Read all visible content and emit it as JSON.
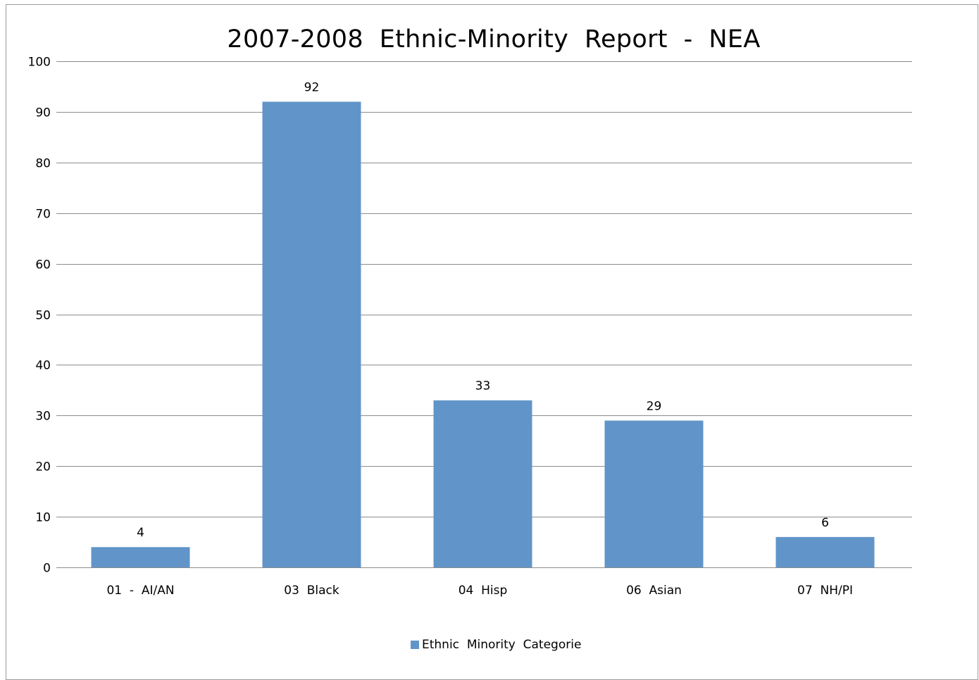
{
  "colors": {
    "bar": "#6195c9",
    "grid": "#8c8c8c",
    "axis": "#8c8c8c",
    "text": "#000000"
  },
  "chart_data": {
    "type": "bar",
    "title": "2007-2008  Ethnic-Minority  Report  -  NEA",
    "categories": [
      "01  -  AI/AN",
      "03  Black",
      "04  Hisp",
      "06  Asian",
      "07  NH/PI"
    ],
    "series": [
      {
        "name": "Ethnic  Minority  Categorie",
        "values": [
          4,
          92,
          33,
          29,
          6
        ]
      }
    ],
    "data_labels": [
      "4",
      "92",
      "33",
      "29",
      "6"
    ],
    "ylim": [
      0,
      100
    ],
    "yticks": [
      0,
      10,
      20,
      30,
      40,
      50,
      60,
      70,
      80,
      90,
      100
    ],
    "grid": true,
    "legend_position": "bottom"
  }
}
